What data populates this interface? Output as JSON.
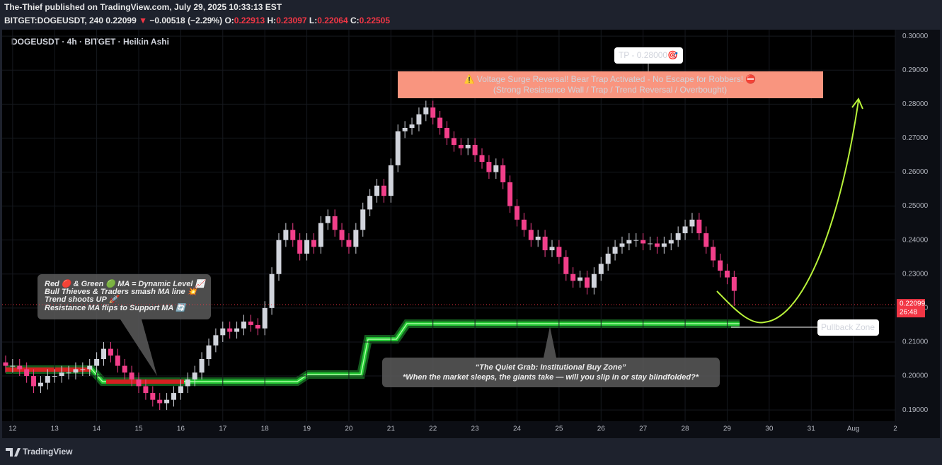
{
  "header": {
    "publisher": "The-Thief published on TradingView.com, July 29, 2025 10:33:13 EST",
    "symbol": "BITGET:DOGEUSDT, 240",
    "change_arrow": "▼",
    "change": "−0.00518 (−2.29%)",
    "ohlc_labels": [
      "O:",
      "H:",
      "L:",
      "C:"
    ]
  },
  "chart_data": {
    "type": "candlestick",
    "title": "DOGEUSDT · 4h · BITGET · Heikin Ashi",
    "up_color": "#d1d4dc",
    "down_color": "#f23f8a",
    "open": [
      0.204,
      0.203,
      0.203,
      0.202,
      0.2,
      0.197,
      0.198,
      0.2,
      0.2,
      0.201,
      0.201,
      0.202,
      0.202,
      0.203,
      0.205,
      0.208,
      0.206,
      0.203,
      0.201,
      0.199,
      0.197,
      0.195,
      0.193,
      0.192,
      0.193,
      0.195,
      0.197,
      0.199,
      0.201,
      0.205,
      0.209,
      0.212,
      0.214,
      0.213,
      0.214,
      0.216,
      0.215,
      0.214,
      0.22,
      0.23,
      0.24,
      0.243,
      0.24,
      0.236,
      0.24,
      0.238,
      0.245,
      0.247,
      0.243,
      0.24,
      0.238,
      0.243,
      0.249,
      0.253,
      0.256,
      0.253,
      0.262,
      0.272,
      0.273,
      0.274,
      0.277,
      0.279,
      0.276,
      0.273,
      0.27,
      0.268,
      0.267,
      0.268,
      0.265,
      0.263,
      0.26,
      0.262,
      0.257,
      0.25,
      0.246,
      0.243,
      0.24,
      0.241,
      0.237,
      0.238,
      0.235,
      0.23,
      0.228,
      0.229,
      0.226,
      0.23,
      0.233,
      0.236,
      0.238,
      0.239,
      0.24,
      0.24,
      0.239,
      0.239,
      0.238,
      0.239,
      0.24,
      0.242,
      0.244,
      0.246,
      0.242,
      0.238,
      0.234,
      0.231,
      0.22913
    ],
    "high": [
      0.206,
      0.205,
      0.205,
      0.204,
      0.202,
      0.2,
      0.202,
      0.202,
      0.203,
      0.203,
      0.204,
      0.204,
      0.205,
      0.207,
      0.21,
      0.21,
      0.208,
      0.205,
      0.203,
      0.201,
      0.199,
      0.197,
      0.195,
      0.195,
      0.197,
      0.199,
      0.201,
      0.203,
      0.207,
      0.211,
      0.214,
      0.216,
      0.216,
      0.216,
      0.218,
      0.218,
      0.217,
      0.222,
      0.232,
      0.242,
      0.245,
      0.245,
      0.242,
      0.242,
      0.242,
      0.247,
      0.249,
      0.249,
      0.245,
      0.242,
      0.245,
      0.251,
      0.255,
      0.258,
      0.258,
      0.264,
      0.274,
      0.275,
      0.276,
      0.279,
      0.281,
      0.281,
      0.278,
      0.275,
      0.272,
      0.27,
      0.27,
      0.27,
      0.267,
      0.265,
      0.264,
      0.264,
      0.259,
      0.252,
      0.248,
      0.245,
      0.243,
      0.243,
      0.24,
      0.24,
      0.237,
      0.232,
      0.231,
      0.231,
      0.232,
      0.235,
      0.238,
      0.24,
      0.241,
      0.242,
      0.242,
      0.242,
      0.241,
      0.241,
      0.241,
      0.242,
      0.244,
      0.246,
      0.248,
      0.248,
      0.244,
      0.24,
      0.236,
      0.233,
      0.23097
    ],
    "low": [
      0.201,
      0.201,
      0.2,
      0.198,
      0.195,
      0.195,
      0.196,
      0.198,
      0.198,
      0.199,
      0.199,
      0.2,
      0.2,
      0.201,
      0.203,
      0.204,
      0.201,
      0.199,
      0.197,
      0.195,
      0.193,
      0.191,
      0.19,
      0.19,
      0.191,
      0.193,
      0.195,
      0.197,
      0.199,
      0.203,
      0.207,
      0.21,
      0.211,
      0.211,
      0.212,
      0.213,
      0.212,
      0.212,
      0.218,
      0.228,
      0.238,
      0.238,
      0.234,
      0.234,
      0.236,
      0.236,
      0.243,
      0.241,
      0.238,
      0.236,
      0.236,
      0.241,
      0.247,
      0.251,
      0.251,
      0.251,
      0.26,
      0.27,
      0.271,
      0.272,
      0.275,
      0.274,
      0.271,
      0.268,
      0.266,
      0.265,
      0.265,
      0.263,
      0.261,
      0.258,
      0.258,
      0.255,
      0.248,
      0.244,
      0.241,
      0.238,
      0.238,
      0.235,
      0.235,
      0.233,
      0.228,
      0.226,
      0.226,
      0.224,
      0.224,
      0.228,
      0.231,
      0.234,
      0.236,
      0.237,
      0.238,
      0.237,
      0.237,
      0.236,
      0.236,
      0.237,
      0.238,
      0.24,
      0.242,
      0.24,
      0.236,
      0.232,
      0.229,
      0.227,
      0.22064
    ],
    "close": [
      0.203,
      0.203,
      0.202,
      0.2,
      0.197,
      0.198,
      0.2,
      0.2,
      0.201,
      0.201,
      0.202,
      0.202,
      0.203,
      0.205,
      0.208,
      0.206,
      0.203,
      0.201,
      0.199,
      0.197,
      0.195,
      0.193,
      0.192,
      0.193,
      0.195,
      0.197,
      0.199,
      0.201,
      0.205,
      0.209,
      0.212,
      0.214,
      0.213,
      0.214,
      0.216,
      0.215,
      0.214,
      0.22,
      0.23,
      0.24,
      0.243,
      0.24,
      0.236,
      0.24,
      0.238,
      0.245,
      0.247,
      0.243,
      0.24,
      0.238,
      0.243,
      0.249,
      0.253,
      0.256,
      0.253,
      0.262,
      0.272,
      0.273,
      0.274,
      0.277,
      0.279,
      0.276,
      0.273,
      0.27,
      0.268,
      0.267,
      0.268,
      0.265,
      0.263,
      0.26,
      0.262,
      0.257,
      0.25,
      0.246,
      0.243,
      0.24,
      0.241,
      0.237,
      0.238,
      0.235,
      0.23,
      0.228,
      0.229,
      0.226,
      0.23,
      0.233,
      0.236,
      0.238,
      0.239,
      0.24,
      0.24,
      0.239,
      0.239,
      0.238,
      0.239,
      0.24,
      0.242,
      0.244,
      0.246,
      0.242,
      0.238,
      0.234,
      0.231,
      0.229,
      0.22505
    ],
    "last_price": 0.22099,
    "countdown": "26:48",
    "xlim": [
      -0.5,
      127
    ],
    "xticks": [
      {
        "value": 1,
        "label": "12"
      },
      {
        "value": 7,
        "label": "13"
      },
      {
        "value": 13,
        "label": "14"
      },
      {
        "value": 19,
        "label": "15"
      },
      {
        "value": 25,
        "label": "16"
      },
      {
        "value": 31,
        "label": "17"
      },
      {
        "value": 37,
        "label": "18"
      },
      {
        "value": 43,
        "label": "19"
      },
      {
        "value": 49,
        "label": "20"
      },
      {
        "value": 55,
        "label": "21"
      },
      {
        "value": 61,
        "label": "22"
      },
      {
        "value": 67,
        "label": "23"
      },
      {
        "value": 73,
        "label": "24"
      },
      {
        "value": 79,
        "label": "25"
      },
      {
        "value": 85,
        "label": "26"
      },
      {
        "value": 91,
        "label": "27"
      },
      {
        "value": 97,
        "label": "28"
      },
      {
        "value": 103,
        "label": "29"
      },
      {
        "value": 109,
        "label": "30"
      },
      {
        "value": 115,
        "label": "31"
      },
      {
        "value": 121,
        "label": "Aug"
      },
      {
        "value": 127,
        "label": "2"
      }
    ],
    "ylim": [
      0.1867,
      0.3019
    ],
    "yticks": [
      {
        "value": 0.19,
        "label": "0.19000"
      },
      {
        "value": 0.2,
        "label": "0.20000"
      },
      {
        "value": 0.21,
        "label": "0.21000"
      },
      {
        "value": 0.22,
        "label": "0.22000"
      },
      {
        "value": 0.23,
        "label": "0.23000"
      },
      {
        "value": 0.24,
        "label": "0.24000"
      },
      {
        "value": 0.25,
        "label": "0.25000"
      },
      {
        "value": 0.26,
        "label": "0.26000"
      },
      {
        "value": 0.27,
        "label": "0.27000"
      },
      {
        "value": 0.28,
        "label": "0.28000"
      },
      {
        "value": 0.29,
        "label": "0.29000"
      },
      {
        "value": 0.3,
        "label": "0.30000"
      }
    ],
    "annotations": {
      "tp": "TP - 0.28000🎯",
      "banner": [
        "⚠️ Voltage Surge Reversal! Bear Trap Activated - No Escape for Robbers! ⛔",
        "(Strong Resistance Wall / Trap / Trend Reversal / Overbought)"
      ],
      "note": [
        "Red 🔴 & Green 🟢 MA = Dynamic Level 📈",
        "Bull Thieves & Traders smash MA line 💥",
        "Trend shoots UP 🚀",
        "Resistance MA flips to Support MA 🔄"
      ],
      "zone": [
        "“The Quiet Grab: Institutional Buy Zone”",
        "*When the market sleeps, the giants take — will you slip in or stay blindfolded?*"
      ],
      "pullback": "Pullback Zone"
    }
  },
  "footer": "TradingView"
}
